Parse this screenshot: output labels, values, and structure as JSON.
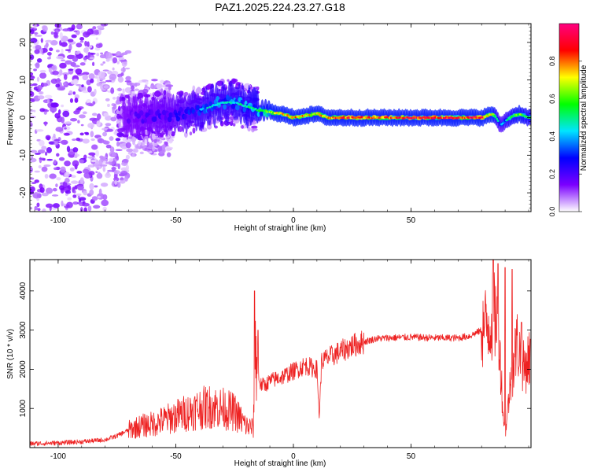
{
  "figure": {
    "title": "PAZ1.2025.224.23.27.G18"
  },
  "chart_data": [
    {
      "type": "heatmap",
      "title": "PAZ1.2025.224.23.27.G18",
      "xlabel": "Height of straight line (km)",
      "ylabel": "Frequency (Hz)",
      "xlim": [
        -112,
        101
      ],
      "ylim": [
        -25,
        25
      ],
      "xticks": [
        -100,
        -50,
        0,
        50
      ],
      "yticks": [
        -20,
        -10,
        0,
        10,
        20
      ],
      "ytick_labels": [
        "-20",
        "-10",
        "0",
        "10",
        "20"
      ],
      "xtick_labels": [
        "-100",
        "-50",
        "0",
        "50"
      ],
      "ridge": {
        "x": [
          -70,
          -60,
          -50,
          -40,
          -35,
          -30,
          -25,
          -20,
          -15,
          -10,
          -5,
          0,
          5,
          10,
          15,
          20,
          30,
          40,
          50,
          60,
          70,
          80,
          85,
          88,
          92,
          96,
          100
        ],
        "frequency": [
          0,
          0.5,
          1,
          2,
          3,
          4,
          4,
          3,
          2,
          1.5,
          1,
          0,
          0.5,
          1,
          0,
          0,
          0,
          0,
          0,
          0,
          0,
          0,
          1,
          -2,
          0,
          1,
          0
        ],
        "amplitude": [
          0.25,
          0.3,
          0.35,
          0.45,
          0.5,
          0.5,
          0.5,
          0.55,
          0.6,
          0.7,
          0.8,
          0.85,
          0.85,
          0.8,
          0.9,
          0.95,
          0.95,
          0.95,
          1.0,
          1.0,
          1.0,
          1.0,
          0.7,
          0.4,
          0.6,
          0.7,
          0.6
        ]
      },
      "colorbar": {
        "label": "Normalized spectral amplitude",
        "range": [
          0,
          1
        ],
        "ticks": [
          0.0,
          0.2,
          0.4,
          0.6,
          0.8
        ],
        "tick_labels": [
          "0.0",
          "0.2",
          "0.4",
          "0.6",
          "0.8"
        ],
        "colors": [
          "#ffffff",
          "#7b00ff",
          "#0000ff",
          "#00e5ff",
          "#00ff00",
          "#ffff00",
          "#ff0000",
          "#ff0080"
        ]
      }
    },
    {
      "type": "line",
      "xlabel": "Height of straight line (km)",
      "ylabel": "SNR (10 * v/v)",
      "xlim": [
        -112,
        101
      ],
      "ylim": [
        0,
        4800
      ],
      "xticks": [
        -100,
        -50,
        0,
        50
      ],
      "xtick_labels": [
        "-100",
        "-50",
        "0",
        "50"
      ],
      "yticks": [
        1000,
        2000,
        3000,
        4000
      ],
      "ytick_labels": [
        "1000",
        "2000",
        "3000",
        "4000"
      ],
      "color": "#ee2222",
      "series": [
        {
          "x": [
            -112,
            -100,
            -90,
            -80,
            -75,
            -70,
            -65,
            -60,
            -55,
            -50,
            -45,
            -40,
            -35,
            -30,
            -25,
            -20,
            -17,
            -16,
            -15,
            -14,
            -12,
            -10,
            -5,
            0,
            5,
            10,
            11,
            12,
            15,
            20,
            25,
            30,
            35,
            40,
            50,
            60,
            70,
            75,
            80,
            85,
            87,
            88,
            89,
            90,
            92,
            95,
            98,
            101
          ],
          "y": [
            100,
            120,
            150,
            200,
            300,
            450,
            550,
            600,
            700,
            800,
            900,
            1000,
            1050,
            1000,
            900,
            550,
            500,
            2600,
            1900,
            1600,
            1600,
            1700,
            1800,
            1950,
            2100,
            2000,
            800,
            2200,
            2300,
            2450,
            2600,
            2700,
            2780,
            2800,
            2820,
            2800,
            2800,
            2850,
            3000,
            3300,
            3400,
            2200,
            1000,
            300,
            1500,
            2700,
            2000,
            2400
          ]
        }
      ],
      "spikes": {
        "x": [
          -16.5,
          -15,
          85,
          87,
          90,
          93,
          97
        ],
        "y": [
          4000,
          3000,
          4800,
          4700,
          4600,
          4550,
          3200
        ]
      }
    }
  ]
}
